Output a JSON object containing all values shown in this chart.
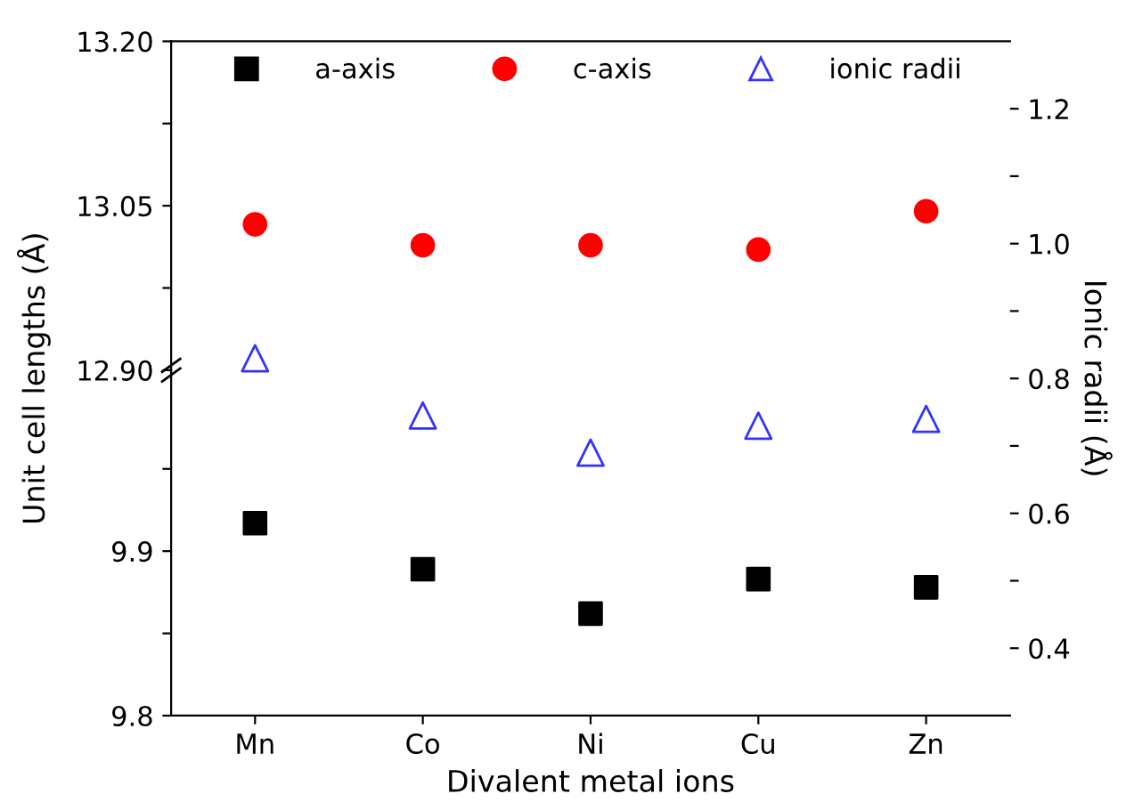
{
  "chart_data": [
    {
      "type": "scatter",
      "xlabel": "Divalent metal ions",
      "ylabel": "Unit cell lengths (Å)",
      "categories": [
        "Mn",
        "Co",
        "Ni",
        "Cu",
        "Zn"
      ],
      "series": [
        {
          "name": "a-axis",
          "color": "#000000",
          "marker": "square",
          "values": [
            9.917,
            9.889,
            9.862,
            9.883,
            9.878
          ]
        }
      ],
      "ylim": [
        9.8,
        10.01
      ],
      "yticks": [
        9.8,
        {
          "value": 9.85,
          "label": null
        },
        9.9,
        {
          "value": 9.95,
          "label": null
        }
      ],
      "legend": "top"
    },
    {
      "type": "scatter",
      "categories": [
        null,
        null,
        null,
        null,
        null
      ],
      "tick_labels": "y",
      "series": [
        {
          "name": "c-axis",
          "color": "#ff0000",
          "marker": "circle",
          "values": [
            13.033,
            13.014,
            13.014,
            13.01,
            13.045
          ]
        }
      ],
      "ylim": [
        12.9,
        13.2
      ],
      "yticks": [
        {
          "value": 12.9,
          "label": "12.90"
        },
        {
          "value": 12.975,
          "label": null
        },
        {
          "value": 13.05,
          "label": "13.05"
        },
        {
          "value": 13.125,
          "label": null
        },
        {
          "value": 13.2,
          "label": "13.20"
        }
      ]
    },
    {
      "type": "scatter",
      "ylabel": "Ionic radii (Å)",
      "categories": [
        null,
        null,
        null,
        null,
        null
      ],
      "tick_labels": "y",
      "series": [
        {
          "name": "ionic radii",
          "color": "#3333ff",
          "marker": "triangle",
          "values": [
            0.83,
            0.745,
            0.69,
            0.73,
            0.74
          ]
        }
      ],
      "ylim": [
        0.3,
        1.3
      ],
      "yticks": [
        0.4,
        {
          "value": 0.5,
          "label": null
        },
        0.6,
        {
          "value": 0.7,
          "label": null
        },
        0.8,
        {
          "value": 0.9,
          "label": null
        },
        {
          "value": 1.0,
          "label": "1.0"
        },
        {
          "value": 1.1,
          "label": null
        },
        1.2
      ]
    }
  ]
}
